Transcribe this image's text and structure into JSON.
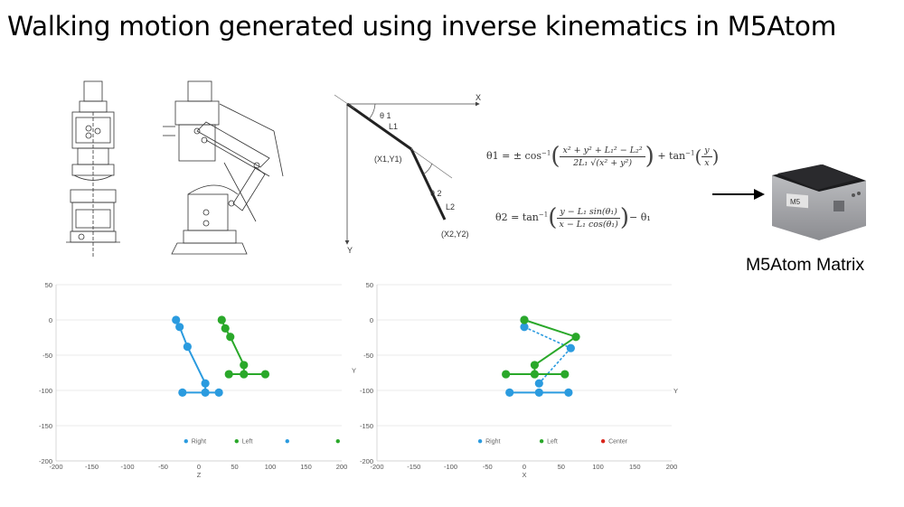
{
  "title": "Walking motion generated using inverse kinematics in M5Atom",
  "ik_diagram": {
    "x_label": "X",
    "y_label": "Y",
    "theta1_label": "θ 1",
    "theta2_label": "θ 2",
    "l1_label": "L1",
    "l2_label": "L2",
    "joint1_label": "(X1,Y1)",
    "joint2_label": "(X2,Y2)"
  },
  "formulas": {
    "theta1": {
      "lhs": "θ1 = ± cos",
      "inv": "−1",
      "numerator": "x² + y² + L₁² − L₂²",
      "denominator": "2L₁ √(x² + y²)",
      "plus": "+ tan",
      "frac2_num": "y",
      "frac2_den": "x"
    },
    "theta2": {
      "lhs": "θ2 = tan",
      "inv": "−1",
      "numerator": "y − L₁ sin(θ₁)",
      "denominator": "x − L₁ cos(θ₁)",
      "tail": "− θ₁"
    }
  },
  "device": {
    "label": "M5Atom Matrix",
    "logo": "M5",
    "body_color": "#a6a7aa",
    "top_color": "#1c1c1e"
  },
  "chart_data": [
    {
      "type": "scatter",
      "title": "",
      "xlabel": "Z",
      "ylabel": "",
      "xlim": [
        -200,
        200
      ],
      "ylim": [
        -200,
        50
      ],
      "x_ticks": [
        "-200",
        "-150",
        "-100",
        "-50",
        "0",
        "50",
        "100",
        "150",
        "200"
      ],
      "y_ticks": [
        "50",
        "0",
        "-50",
        "-100",
        "-150",
        "-200"
      ],
      "grid": true,
      "legend_position": "bottom",
      "series": [
        {
          "name": "Right",
          "color": "#2b9bdf",
          "points": [
            [
              -32,
              0
            ],
            [
              -27,
              -10
            ],
            [
              -16,
              -38
            ],
            [
              9,
              -90
            ],
            [
              9,
              -103
            ],
            [
              -23,
              -103
            ],
            [
              28,
              -103
            ]
          ],
          "segments": [
            [
              [
                -32,
                0
              ],
              [
                -27,
                -10
              ]
            ],
            [
              [
                -27,
                -10
              ],
              [
                -16,
                -38
              ]
            ],
            [
              [
                -16,
                -38
              ],
              [
                9,
                -90
              ]
            ],
            [
              [
                9,
                -90
              ],
              [
                9,
                -103
              ]
            ],
            [
              [
                -23,
                -103
              ],
              [
                28,
                -103
              ]
            ]
          ]
        },
        {
          "name": "Left",
          "color": "#2aa82a",
          "points": [
            [
              32,
              0
            ],
            [
              37,
              -12
            ],
            [
              44,
              -24
            ],
            [
              63,
              -64
            ],
            [
              63,
              -77
            ],
            [
              42,
              -77
            ],
            [
              93,
              -77
            ]
          ],
          "segments": [
            [
              [
                32,
                0
              ],
              [
                37,
                -12
              ]
            ],
            [
              [
                37,
                -12
              ],
              [
                44,
                -24
              ]
            ],
            [
              [
                44,
                -24
              ],
              [
                63,
                -64
              ]
            ],
            [
              [
                63,
                -64
              ],
              [
                63,
                -77
              ]
            ],
            [
              [
                42,
                -77
              ],
              [
                93,
                -77
              ]
            ]
          ]
        },
        {
          "name": "",
          "color": "#2b9bdf",
          "points": [],
          "segments": []
        },
        {
          "name": "",
          "color": "#2aa82a",
          "points": [],
          "segments": []
        }
      ]
    },
    {
      "type": "scatter",
      "title": "",
      "xlabel": "X",
      "ylabel": "Y",
      "xlim": [
        -200,
        200
      ],
      "ylim": [
        -200,
        50
      ],
      "x_ticks": [
        "-200",
        "-150",
        "-100",
        "-50",
        "0",
        "50",
        "100",
        "150",
        "200"
      ],
      "y_ticks": [
        "50",
        "0",
        "-50",
        "-100",
        "-150",
        "-200"
      ],
      "grid": true,
      "legend_position": "bottom",
      "series": [
        {
          "name": "Right",
          "color": "#2b9bdf",
          "points": [
            [
              0,
              0
            ],
            [
              0,
              -10
            ],
            [
              63,
              -40
            ],
            [
              20,
              -90
            ],
            [
              20,
              -103
            ],
            [
              -20,
              -103
            ],
            [
              60,
              -103
            ]
          ],
          "segments": [
            [
              [
                0,
                0
              ],
              [
                0,
                -10
              ]
            ],
            [
              [
                -20,
                -103
              ],
              [
                60,
                -103
              ]
            ]
          ],
          "dashed_segments": [
            [
              [
                0,
                -10
              ],
              [
                63,
                -40
              ]
            ],
            [
              [
                63,
                -40
              ],
              [
                20,
                -90
              ]
            ]
          ]
        },
        {
          "name": "Left",
          "color": "#2aa82a",
          "points": [
            [
              0,
              0
            ],
            [
              70,
              -24
            ],
            [
              14,
              -64
            ],
            [
              14,
              -77
            ],
            [
              -25,
              -77
            ],
            [
              55,
              -77
            ]
          ],
          "segments": [
            [
              [
                0,
                0
              ],
              [
                70,
                -24
              ]
            ],
            [
              [
                70,
                -24
              ],
              [
                14,
                -64
              ]
            ],
            [
              [
                14,
                -64
              ],
              [
                14,
                -77
              ]
            ],
            [
              [
                -25,
                -77
              ],
              [
                55,
                -77
              ]
            ]
          ]
        },
        {
          "name": "Center",
          "color": "#d9261c",
          "points": [],
          "segments": []
        }
      ]
    }
  ]
}
